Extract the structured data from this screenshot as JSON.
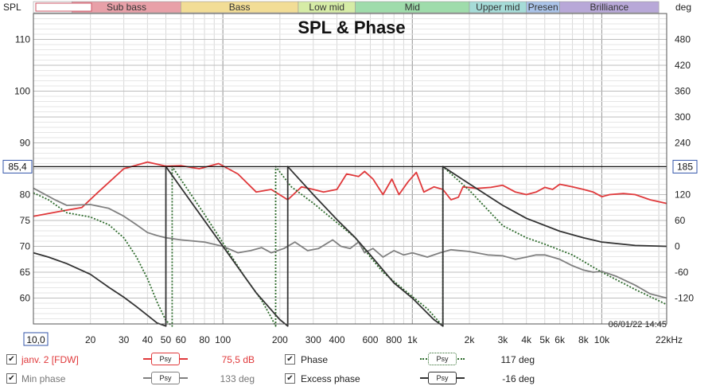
{
  "chart_data": {
    "type": "line",
    "title": "SPL & Phase",
    "ylabel_left": "SPL",
    "ylabel_right": "deg",
    "x_unit": "kHz",
    "xlim": [
      10,
      22000
    ],
    "x_scale": "log",
    "ylim_left": [
      55,
      115
    ],
    "ylim_right": [
      -180,
      540
    ],
    "grid": true,
    "x_ticks": [
      {
        "value": 10,
        "label": "10,0"
      },
      {
        "value": 20,
        "label": "20"
      },
      {
        "value": 30,
        "label": "30"
      },
      {
        "value": 40,
        "label": "40"
      },
      {
        "value": 50,
        "label": "50"
      },
      {
        "value": 60,
        "label": "60"
      },
      {
        "value": 80,
        "label": "80"
      },
      {
        "value": 100,
        "label": "100"
      },
      {
        "value": 200,
        "label": "200"
      },
      {
        "value": 300,
        "label": "300"
      },
      {
        "value": 400,
        "label": "400"
      },
      {
        "value": 600,
        "label": "600"
      },
      {
        "value": 800,
        "label": "800"
      },
      {
        "value": 1000,
        "label": "1k"
      },
      {
        "value": 2000,
        "label": "2k"
      },
      {
        "value": 3000,
        "label": "3k"
      },
      {
        "value": 4000,
        "label": "4k"
      },
      {
        "value": 5000,
        "label": "5k"
      },
      {
        "value": 6000,
        "label": "6k"
      },
      {
        "value": 8000,
        "label": "8k"
      },
      {
        "value": 10000,
        "label": "10k"
      },
      {
        "value": 22000,
        "label": "22kHz"
      }
    ],
    "y_left_ticks": [
      60,
      65,
      70,
      75,
      80,
      85,
      90,
      100,
      110
    ],
    "y_left_tick_labels": [
      "60",
      "65",
      "70",
      "75",
      "80",
      "85",
      "90",
      "100",
      "110"
    ],
    "y_right_ticks": [
      -120,
      -60,
      0,
      60,
      120,
      240,
      300,
      360,
      420,
      480
    ],
    "y_right_tick_labels": [
      "-120",
      "-60",
      "0",
      "60",
      "120",
      "240",
      "300",
      "360",
      "420",
      "480"
    ],
    "cursor": {
      "spl": 85.4,
      "spl_label": "85,4",
      "deg": 185,
      "deg_label": "185"
    },
    "timestamp": "06/01/22 14:45",
    "bands": [
      {
        "label": "",
        "from": 10,
        "to": 16,
        "color": "#ffffff"
      },
      {
        "label": "Sub bass",
        "from": 16,
        "to": 60,
        "color": "#e8a0a8"
      },
      {
        "label": "Bass",
        "from": 60,
        "to": 250,
        "color": "#f2dd96"
      },
      {
        "label": "Low mid",
        "from": 250,
        "to": 500,
        "color": "#d6eca6"
      },
      {
        "label": "Mid",
        "from": 500,
        "to": 2000,
        "color": "#9fdcab"
      },
      {
        "label": "Upper mid",
        "from": 2000,
        "to": 4000,
        "color": "#a6dcd8"
      },
      {
        "label": "Presen",
        "from": 4000,
        "to": 6000,
        "color": "#aac3e8"
      },
      {
        "label": "Brilliance",
        "from": 6000,
        "to": 20000,
        "color": "#b8a8d8"
      }
    ],
    "series": [
      {
        "name": "janv. 2 [FDW]",
        "axis": "spl",
        "color": "#e0393b",
        "dash": "",
        "points": [
          [
            10,
            75.8
          ],
          [
            15,
            77
          ],
          [
            18,
            77.5
          ],
          [
            22,
            80.5
          ],
          [
            30,
            85
          ],
          [
            40,
            86.3
          ],
          [
            50,
            85.5
          ],
          [
            60,
            85.6
          ],
          [
            75,
            85
          ],
          [
            95,
            86
          ],
          [
            120,
            84
          ],
          [
            150,
            80.5
          ],
          [
            180,
            81
          ],
          [
            220,
            79
          ],
          [
            260,
            81.5
          ],
          [
            300,
            81
          ],
          [
            340,
            80.5
          ],
          [
            400,
            81
          ],
          [
            450,
            84
          ],
          [
            520,
            83.5
          ],
          [
            560,
            84.5
          ],
          [
            620,
            83
          ],
          [
            700,
            80
          ],
          [
            780,
            83
          ],
          [
            850,
            80
          ],
          [
            950,
            82.5
          ],
          [
            1050,
            84.3
          ],
          [
            1150,
            80.5
          ],
          [
            1300,
            81.5
          ],
          [
            1450,
            81
          ],
          [
            1600,
            79
          ],
          [
            1750,
            79.5
          ],
          [
            1850,
            81.5
          ],
          [
            2200,
            81.2
          ],
          [
            2600,
            81.4
          ],
          [
            3000,
            81.8
          ],
          [
            3500,
            80.5
          ],
          [
            4000,
            80
          ],
          [
            4500,
            80.5
          ],
          [
            5000,
            81.4
          ],
          [
            5500,
            81
          ],
          [
            6000,
            82
          ],
          [
            7000,
            81.5
          ],
          [
            8000,
            81
          ],
          [
            9000,
            80.5
          ],
          [
            10000,
            79.6
          ],
          [
            11000,
            80
          ],
          [
            13000,
            80.2
          ],
          [
            15000,
            80
          ],
          [
            18000,
            79
          ],
          [
            22000,
            78.3
          ]
        ]
      },
      {
        "name": "Phase",
        "axis": "deg",
        "color": "#2e6b2c",
        "dash": "2,2",
        "points": [
          [
            10,
            124
          ],
          [
            12,
            108
          ],
          [
            15,
            78
          ],
          [
            20,
            68
          ],
          [
            25,
            50
          ],
          [
            30,
            20
          ],
          [
            35,
            -25
          ],
          [
            40,
            -75
          ],
          [
            45,
            -130
          ],
          [
            50,
            -172
          ],
          [
            54,
            -185
          ],
          [
            54,
            185
          ],
          [
            80,
            74
          ],
          [
            100,
            8
          ],
          [
            130,
            -70
          ],
          [
            160,
            -125
          ],
          [
            180,
            -165
          ],
          [
            190,
            -185
          ],
          [
            190,
            185
          ],
          [
            230,
            138
          ],
          [
            300,
            100
          ],
          [
            400,
            55
          ],
          [
            500,
            20
          ],
          [
            600,
            -25
          ],
          [
            700,
            -60
          ],
          [
            900,
            -100
          ],
          [
            1200,
            -145
          ],
          [
            1450,
            -185
          ],
          [
            1450,
            185
          ],
          [
            2000,
            130
          ],
          [
            3000,
            48
          ],
          [
            4000,
            20
          ],
          [
            5000,
            5
          ],
          [
            7000,
            -20
          ],
          [
            10000,
            -60
          ],
          [
            15000,
            -100
          ],
          [
            22000,
            -135
          ]
        ]
      },
      {
        "name": "Min phase",
        "axis": "deg",
        "color": "#808080",
        "dash": "",
        "points": [
          [
            10,
            135
          ],
          [
            13,
            108
          ],
          [
            15,
            95
          ],
          [
            20,
            97
          ],
          [
            25,
            88
          ],
          [
            30,
            70
          ],
          [
            35,
            50
          ],
          [
            40,
            32
          ],
          [
            45,
            25
          ],
          [
            50,
            20
          ],
          [
            60,
            15
          ],
          [
            80,
            10
          ],
          [
            100,
            0
          ],
          [
            120,
            -15
          ],
          [
            140,
            -10
          ],
          [
            160,
            -3
          ],
          [
            180,
            -15
          ],
          [
            210,
            -5
          ],
          [
            240,
            10
          ],
          [
            280,
            -10
          ],
          [
            320,
            -5
          ],
          [
            380,
            15
          ],
          [
            420,
            0
          ],
          [
            470,
            -5
          ],
          [
            520,
            10
          ],
          [
            560,
            -15
          ],
          [
            620,
            -5
          ],
          [
            700,
            -25
          ],
          [
            800,
            -10
          ],
          [
            900,
            -20
          ],
          [
            1000,
            -15
          ],
          [
            1200,
            -25
          ],
          [
            1400,
            -15
          ],
          [
            1600,
            -8
          ],
          [
            2000,
            -12
          ],
          [
            2500,
            -20
          ],
          [
            3000,
            -22
          ],
          [
            3500,
            -30
          ],
          [
            4000,
            -25
          ],
          [
            4500,
            -20
          ],
          [
            5000,
            -20
          ],
          [
            6000,
            -30
          ],
          [
            7000,
            -45
          ],
          [
            8000,
            -55
          ],
          [
            9000,
            -60
          ],
          [
            10000,
            -58
          ],
          [
            12000,
            -70
          ],
          [
            15000,
            -90
          ],
          [
            18000,
            -110
          ],
          [
            22000,
            -120
          ]
        ]
      },
      {
        "name": "Excess phase",
        "axis": "deg",
        "color": "#333333",
        "dash": "",
        "points": [
          [
            10,
            -15
          ],
          [
            12,
            -25
          ],
          [
            15,
            -40
          ],
          [
            20,
            -65
          ],
          [
            25,
            -95
          ],
          [
            30,
            -118
          ],
          [
            35,
            -140
          ],
          [
            40,
            -160
          ],
          [
            45,
            -178
          ],
          [
            50,
            -185
          ],
          [
            50,
            185
          ],
          [
            70,
            95
          ],
          [
            100,
            0
          ],
          [
            150,
            -108
          ],
          [
            200,
            -170
          ],
          [
            220,
            -185
          ],
          [
            220,
            185
          ],
          [
            300,
            120
          ],
          [
            400,
            62
          ],
          [
            500,
            20
          ],
          [
            600,
            -20
          ],
          [
            800,
            -85
          ],
          [
            1000,
            -120
          ],
          [
            1300,
            -170
          ],
          [
            1450,
            -185
          ],
          [
            1450,
            185
          ],
          [
            2000,
            145
          ],
          [
            3000,
            95
          ],
          [
            4000,
            65
          ],
          [
            6000,
            35
          ],
          [
            8000,
            20
          ],
          [
            10000,
            10
          ],
          [
            15000,
            2
          ],
          [
            22000,
            0
          ]
        ]
      }
    ]
  },
  "legend": [
    {
      "checked": "✔",
      "label": "janv. 2 [FDW]",
      "swatch_text": "Psy",
      "value": "75,5 dB",
      "color": "#e0393b",
      "dash": false
    },
    {
      "checked": "✔",
      "label": "Phase",
      "swatch_text": "Psy",
      "value": "117 deg",
      "color": "#2e6b2c",
      "dash": true
    },
    {
      "checked": "✔",
      "label": "Min phase",
      "swatch_text": "Psy",
      "value": "133 deg",
      "color": "#808080",
      "dash": false
    },
    {
      "checked": "✔",
      "label": "Excess phase",
      "swatch_text": "Psy",
      "value": "-16 deg",
      "color": "#333333",
      "dash": false
    }
  ]
}
